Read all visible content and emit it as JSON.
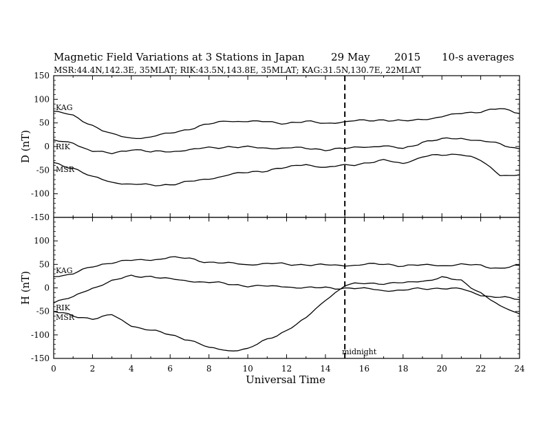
{
  "header": {
    "title": "Magnetic Field Variations at 3 Stations in Japan",
    "date": "29 May",
    "year": "2015",
    "averaging": "10-s averages",
    "stations": "MSR:44.4N,142.3E, 35MLAT;  RIK:43.5N,143.8E, 35MLAT;  KAG:31.5N,130.7E, 22MLAT"
  },
  "chart_data": [
    {
      "type": "line",
      "ylabel": "D (nT)",
      "xlim": [
        0,
        24
      ],
      "ylim": [
        -150,
        150
      ],
      "yticks": [
        "150",
        "100",
        "50",
        "0",
        "-50",
        "-100",
        "-150"
      ],
      "x": [
        0,
        1,
        2,
        3,
        4,
        5,
        6,
        7,
        8,
        9,
        10,
        11,
        12,
        13,
        14,
        15,
        16,
        17,
        18,
        19,
        20,
        21,
        22,
        23,
        24
      ],
      "series": [
        {
          "name": "KAG",
          "color": "#000000",
          "values": [
            75,
            65,
            45,
            25,
            18,
            20,
            28,
            38,
            47,
            55,
            53,
            52,
            50,
            52,
            50,
            52,
            55,
            57,
            53,
            58,
            63,
            70,
            75,
            80,
            70
          ]
        },
        {
          "name": "RIK",
          "color": "#000000",
          "values": [
            12,
            8,
            -10,
            -15,
            -5,
            -12,
            -10,
            -7,
            -3,
            0,
            -2,
            -3,
            -3,
            -4,
            -6,
            -5,
            0,
            1,
            -5,
            10,
            15,
            18,
            12,
            5,
            -5
          ]
        },
        {
          "name": "MSR",
          "color": "#000000",
          "values": [
            -35,
            -45,
            -65,
            -75,
            -80,
            -82,
            -80,
            -75,
            -68,
            -60,
            -55,
            -50,
            -45,
            -37,
            -45,
            -40,
            -35,
            -30,
            -35,
            -22,
            -18,
            -15,
            -30,
            -60,
            -60
          ]
        }
      ]
    },
    {
      "type": "line",
      "ylabel": "H (nT)",
      "xlabel": "Universal Time",
      "xlim": [
        0,
        24
      ],
      "ylim": [
        -150,
        150
      ],
      "xticks": [
        "0",
        "2",
        "4",
        "6",
        "8",
        "10",
        "12",
        "14",
        "16",
        "18",
        "20",
        "22",
        "24"
      ],
      "yticks": [
        "100",
        "50",
        "0",
        "-50",
        "-100",
        "-150"
      ],
      "x": [
        0,
        1,
        2,
        3,
        4,
        5,
        6,
        7,
        8,
        9,
        10,
        11,
        12,
        13,
        14,
        15,
        16,
        17,
        18,
        19,
        20,
        21,
        22,
        23,
        24
      ],
      "series": [
        {
          "name": "KAG",
          "color": "#000000",
          "values": [
            25,
            30,
            45,
            55,
            58,
            60,
            65,
            62,
            55,
            52,
            50,
            52,
            50,
            50,
            48,
            48,
            50,
            50,
            48,
            48,
            48,
            50,
            47,
            42,
            48
          ]
        },
        {
          "name": "RIK",
          "color": "#000000",
          "values": [
            -30,
            -20,
            0,
            15,
            25,
            25,
            18,
            15,
            12,
            8,
            5,
            3,
            3,
            0,
            0,
            0,
            -2,
            -5,
            -5,
            -2,
            0,
            -3,
            -15,
            -20,
            -25
          ]
        },
        {
          "name": "MSR",
          "color": "#000000",
          "values": [
            -50,
            -60,
            -65,
            -58,
            -80,
            -90,
            -100,
            -110,
            -128,
            -133,
            -130,
            -110,
            -90,
            -65,
            -25,
            5,
            10,
            10,
            10,
            15,
            22,
            15,
            -10,
            -40,
            -55
          ]
        }
      ],
      "annotation": {
        "x": 15,
        "label": "midnight"
      }
    }
  ]
}
